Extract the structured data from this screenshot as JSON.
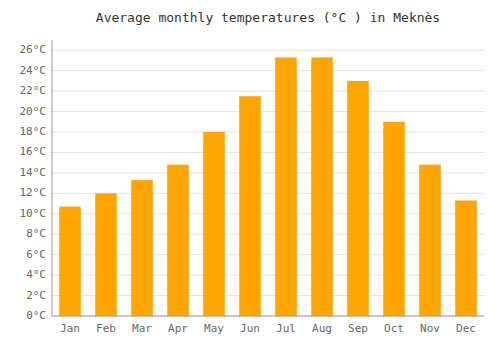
{
  "chart_data": {
    "type": "bar",
    "title": "Average monthly temperatures (°C ) in Meknès",
    "categories": [
      "Jan",
      "Feb",
      "Mar",
      "Apr",
      "May",
      "Jun",
      "Jul",
      "Aug",
      "Sep",
      "Oct",
      "Nov",
      "Dec"
    ],
    "values": [
      10.7,
      12.0,
      13.3,
      14.8,
      18.0,
      21.5,
      25.3,
      25.3,
      23.0,
      19.0,
      14.8,
      11.3
    ],
    "color": "#FFA500",
    "ylim": [
      0,
      27
    ],
    "yticks": [
      {
        "value": 0,
        "label": "0°C"
      },
      {
        "value": 2,
        "label": "2°C"
      },
      {
        "value": 4,
        "label": "4°C"
      },
      {
        "value": 6,
        "label": "6°C"
      },
      {
        "value": 8,
        "label": "8°C"
      },
      {
        "value": 10,
        "label": "10°C"
      },
      {
        "value": 12,
        "label": "12°C"
      },
      {
        "value": 14,
        "label": "14°C"
      },
      {
        "value": 16,
        "label": "16°C"
      },
      {
        "value": 18,
        "label": "18°C"
      },
      {
        "value": 20,
        "label": "20°C"
      },
      {
        "value": 22,
        "label": "22°C"
      },
      {
        "value": 24,
        "label": "24°C"
      },
      {
        "value": 26,
        "label": "26°C"
      }
    ],
    "grid": true
  }
}
